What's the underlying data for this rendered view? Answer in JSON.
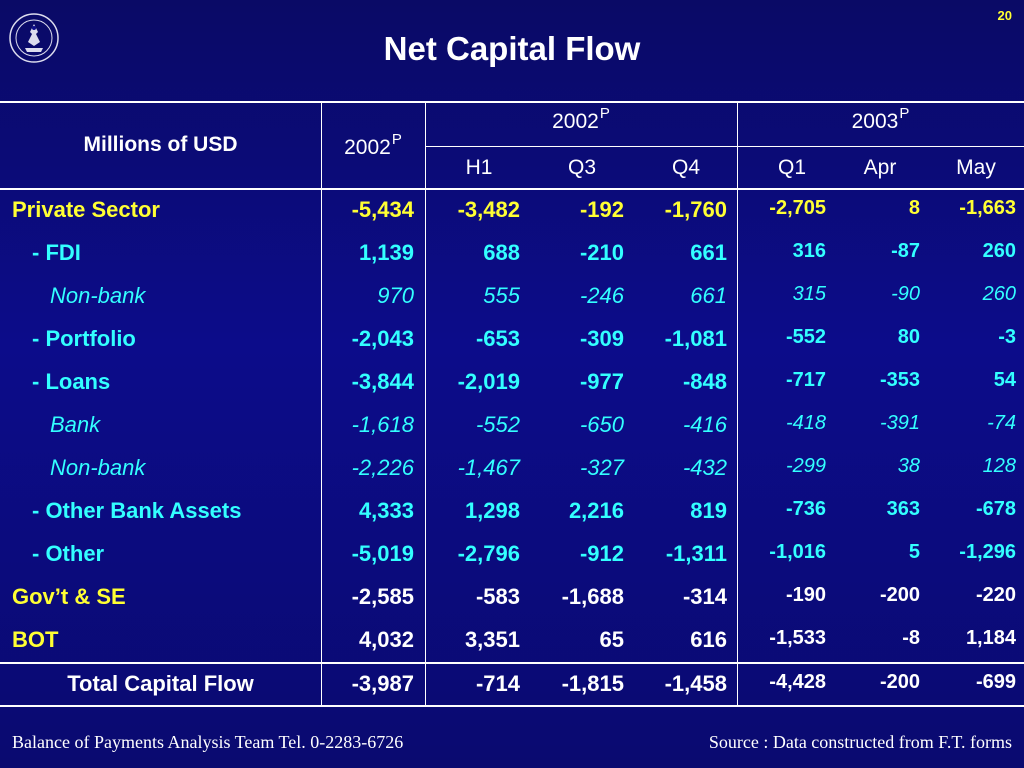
{
  "slide_number": "20",
  "title": "Net Capital Flow",
  "header": {
    "units": "Millions of USD",
    "col_2002": "2002",
    "group_2002": "2002",
    "group_2003": "2003",
    "sup": "P",
    "subcols": [
      "H1",
      "Q3",
      "Q4",
      "Q1",
      "Apr",
      "May"
    ]
  },
  "rows": [
    {
      "label": "Private Sector",
      "style": "yellow",
      "indent": 0,
      "values": [
        "-5,434",
        "-3,482",
        "-192",
        "-1,760",
        "-2,705",
        "8",
        "-1,663"
      ]
    },
    {
      "label": "- FDI",
      "style": "cyan",
      "indent": 1,
      "values": [
        "1,139",
        "688",
        "-210",
        "661",
        "316",
        "-87",
        "260"
      ]
    },
    {
      "label": "Non-bank",
      "style": "cyan-it",
      "indent": 2,
      "values": [
        "970",
        "555",
        "-246",
        "661",
        "315",
        "-90",
        "260"
      ]
    },
    {
      "label": "- Portfolio",
      "style": "cyan",
      "indent": 1,
      "values": [
        "-2,043",
        "-653",
        "-309",
        "-1,081",
        "-552",
        "80",
        "-3"
      ]
    },
    {
      "label": "- Loans",
      "style": "cyan",
      "indent": 1,
      "values": [
        "-3,844",
        "-2,019",
        "-977",
        "-848",
        "-717",
        "-353",
        "54"
      ]
    },
    {
      "label": "Bank",
      "style": "cyan-it",
      "indent": 2,
      "values": [
        "-1,618",
        "-552",
        "-650",
        "-416",
        "-418",
        "-391",
        "-74"
      ]
    },
    {
      "label": "Non-bank",
      "style": "cyan-it",
      "indent": 2,
      "values": [
        "-2,226",
        "-1,467",
        "-327",
        "-432",
        "-299",
        "38",
        "128"
      ]
    },
    {
      "label": "- Other Bank Assets",
      "style": "cyan",
      "indent": 1,
      "values": [
        "4,333",
        "1,298",
        "2,216",
        "819",
        "-736",
        "363",
        "-678"
      ]
    },
    {
      "label": "- Other",
      "style": "cyan",
      "indent": 1,
      "values": [
        "-5,019",
        "-2,796",
        "-912",
        "-1,311",
        "-1,016",
        "5",
        "-1,296"
      ]
    },
    {
      "label": "Gov’t & SE",
      "style": "yellow",
      "indent": 0,
      "values": [
        "-2,585",
        "-583",
        "-1,688",
        "-314",
        "-190",
        "-200",
        "-220"
      ],
      "white_values": true
    },
    {
      "label": "BOT",
      "style": "yellow",
      "indent": 0,
      "values": [
        "4,032",
        "3,351",
        "65",
        "616",
        "-1,533",
        "-8",
        "1,184"
      ],
      "white_values": true
    }
  ],
  "total": {
    "label": "Total Capital Flow",
    "values": [
      "-3,987",
      "-714",
      "-1,815",
      "-1,458",
      "-4,428",
      "-200",
      "-699"
    ]
  },
  "footer": {
    "left": "Balance of Payments Analysis Team Tel. 0-2283-6726",
    "right": "Source : Data constructed from F.T. forms"
  },
  "colors": {
    "label_yellow": "#ffff33",
    "label_cyan": "#33ffff",
    "background": "#0c0c8a"
  }
}
